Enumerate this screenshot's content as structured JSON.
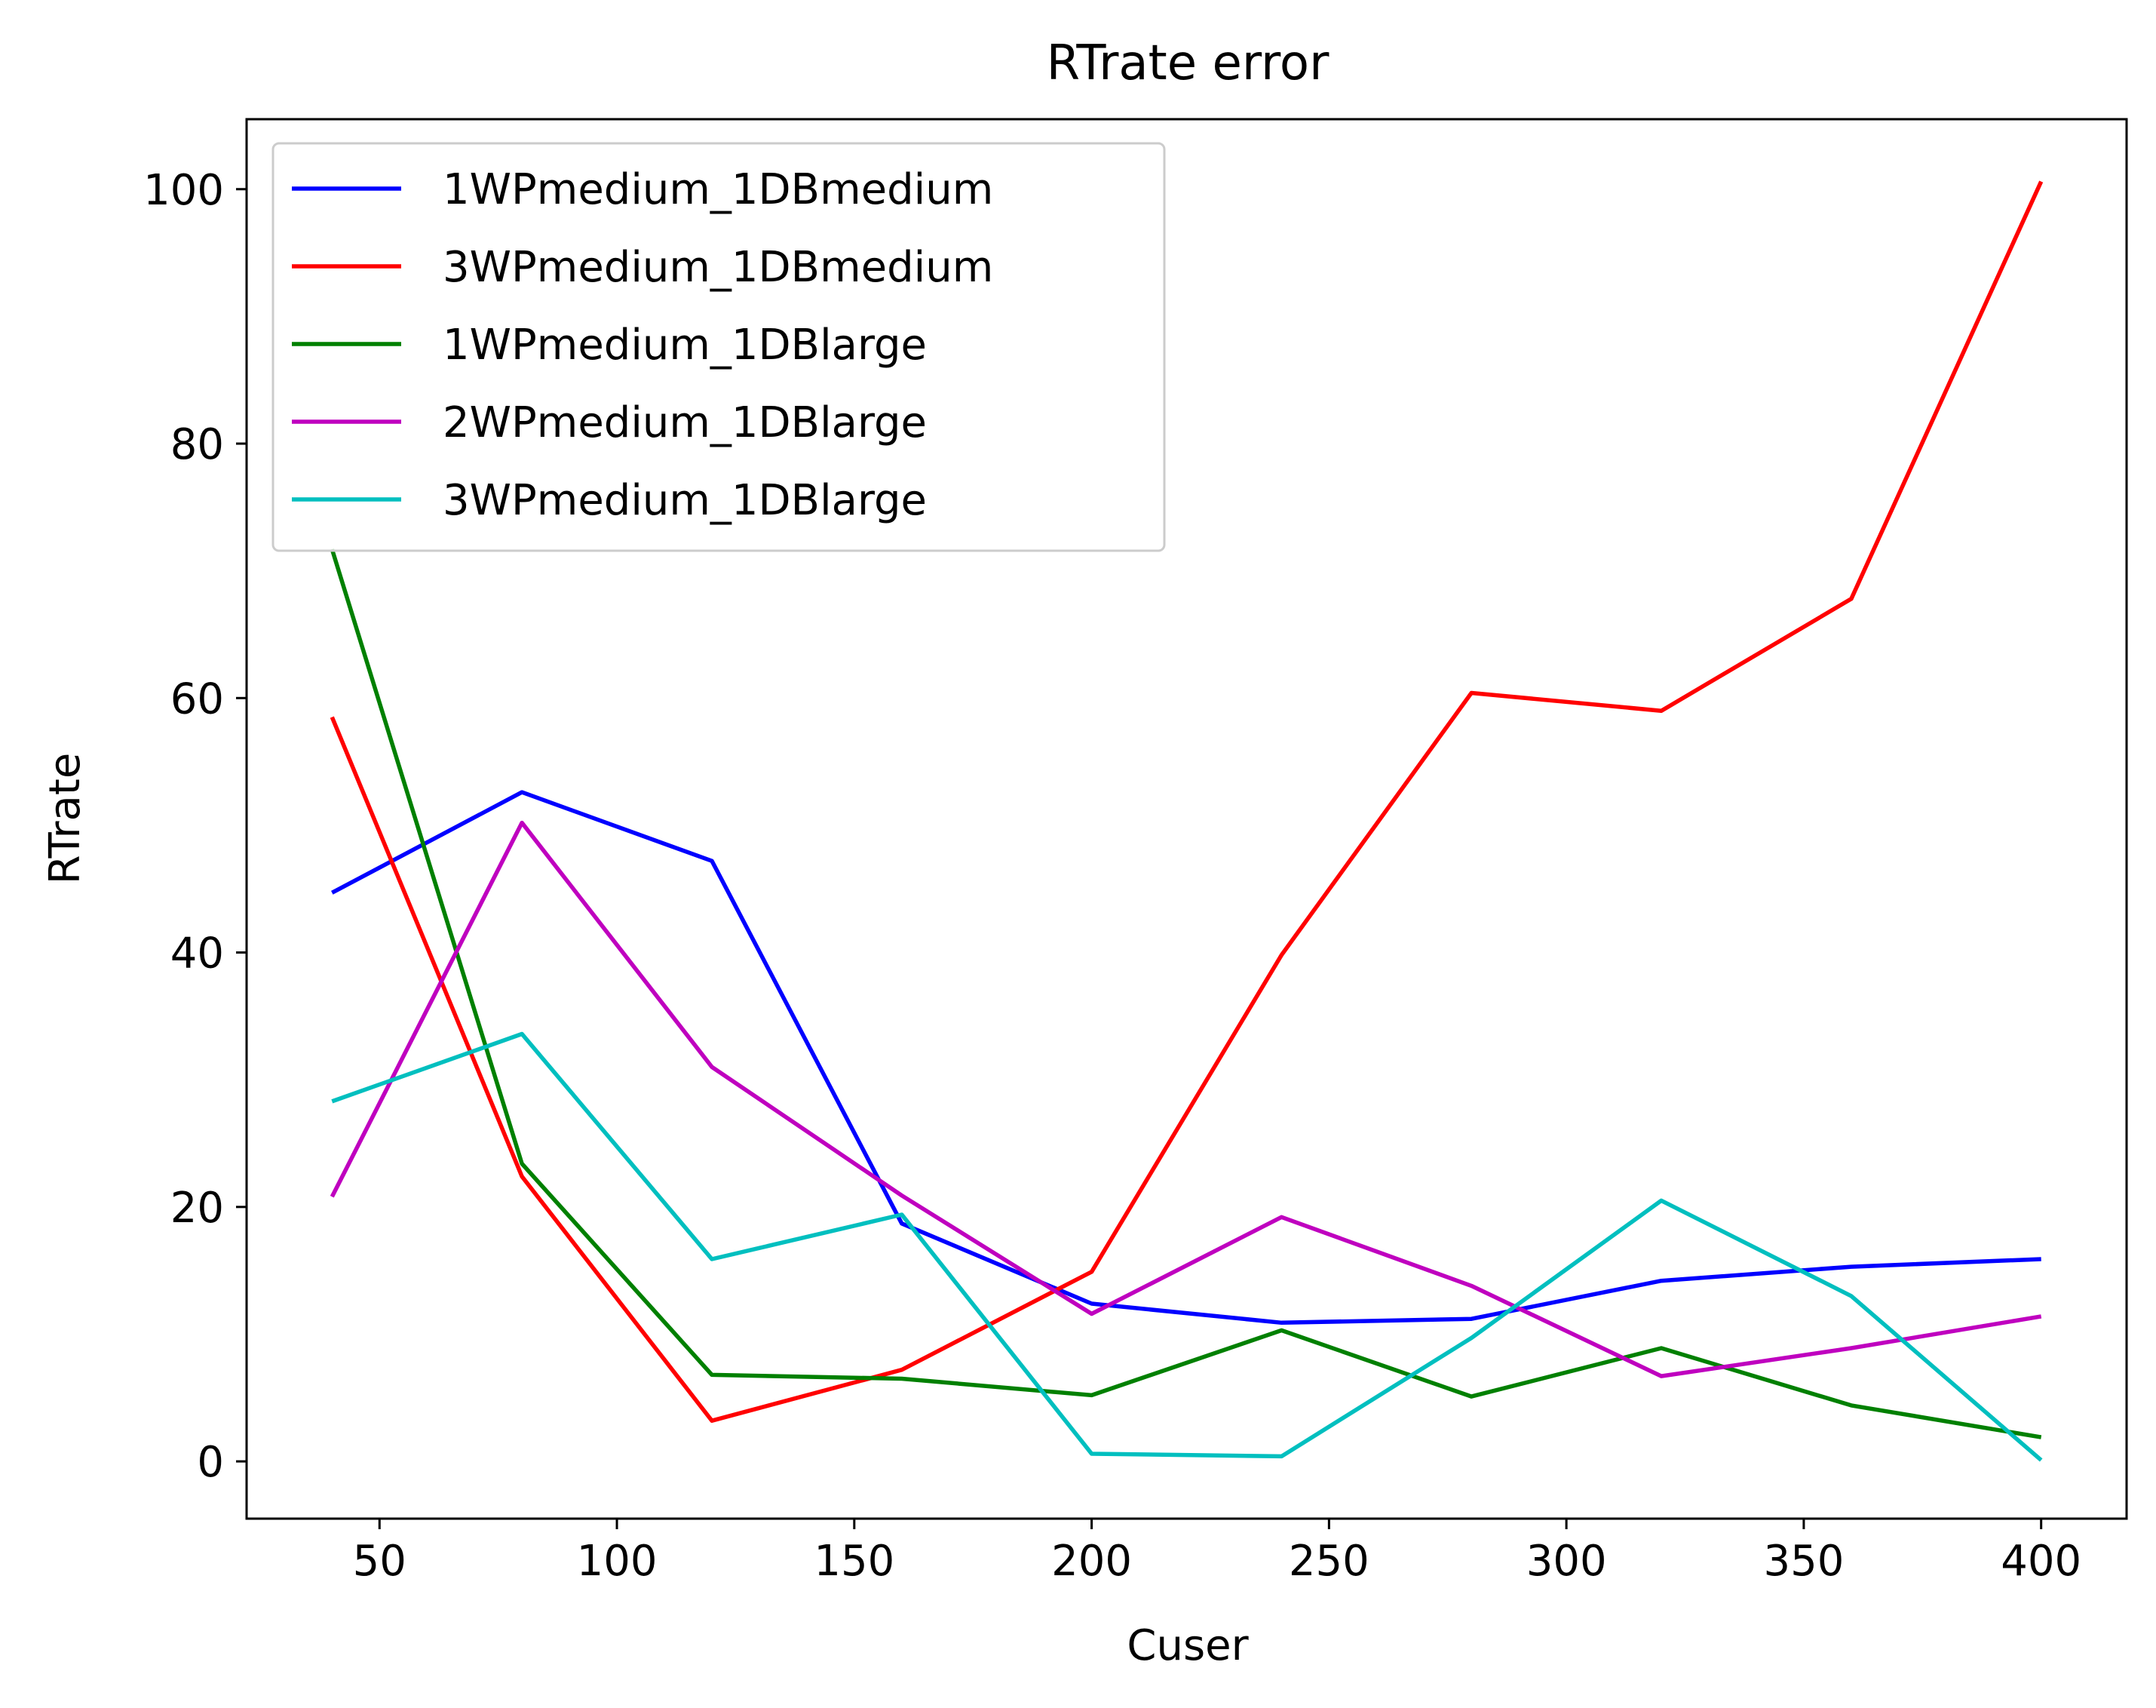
{
  "chart_data": {
    "type": "line",
    "title": "RTrate error",
    "xlabel": "Cuser",
    "ylabel": "RTrate",
    "xlim": [
      22,
      418
    ],
    "ylim": [
      -4.5,
      105.5
    ],
    "xticks": [
      50,
      100,
      150,
      200,
      250,
      300,
      350,
      400
    ],
    "yticks": [
      0,
      20,
      40,
      60,
      80,
      100
    ],
    "grid": false,
    "legend_position": "top-left",
    "x": [
      40,
      80,
      120,
      160,
      200,
      240,
      280,
      320,
      360,
      400
    ],
    "series": [
      {
        "name": "1WPmedium_1DBmedium",
        "color": "#0000ff",
        "values": [
          44.7,
          52.6,
          47.2,
          18.7,
          12.4,
          10.9,
          11.2,
          14.2,
          15.3,
          15.9
        ]
      },
      {
        "name": "3WPmedium_1DBmedium",
        "color": "#ff0000",
        "values": [
          58.5,
          22.4,
          3.2,
          7.2,
          14.9,
          39.8,
          60.4,
          59.0,
          67.8,
          100.6
        ]
      },
      {
        "name": "1WPmedium_1DBlarge",
        "color": "#008000",
        "values": [
          71.7,
          23.4,
          6.8,
          6.5,
          5.2,
          10.3,
          5.1,
          8.9,
          4.4,
          1.9
        ]
      },
      {
        "name": "2WPmedium_1DBlarge",
        "color": "#bf00bf",
        "values": [
          20.8,
          50.2,
          31.0,
          20.9,
          11.6,
          19.2,
          13.8,
          6.7,
          8.9,
          11.4
        ]
      },
      {
        "name": "3WPmedium_1DBlarge",
        "color": "#00bfbf",
        "values": [
          28.3,
          33.6,
          15.9,
          19.4,
          0.6,
          0.4,
          9.7,
          20.5,
          13.0,
          0.1
        ]
      }
    ]
  }
}
